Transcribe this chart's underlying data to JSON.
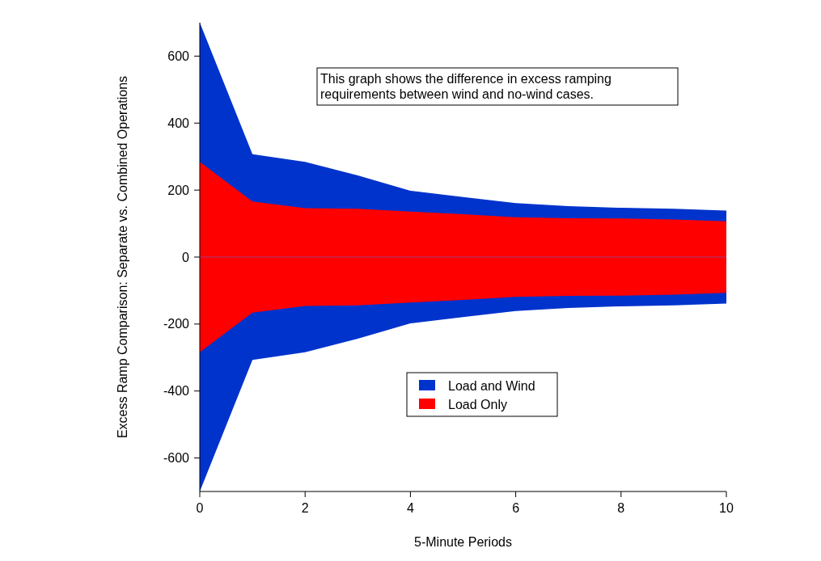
{
  "chart_data": {
    "type": "area",
    "xlabel": "5-Minute Periods",
    "ylabel": "Excess Ramp Comparison: Separate vs. Combined Operations",
    "x": [
      0,
      1,
      2,
      3,
      4,
      5,
      6,
      7,
      8,
      9,
      10
    ],
    "series": [
      {
        "name": "Load and Wind",
        "color": "#0033cc",
        "values": [
          700,
          307,
          284,
          244,
          198,
          179,
          161,
          152,
          147,
          144,
          139
        ]
      },
      {
        "color": "#0033cc",
        "values": [
          -700,
          -307,
          -284,
          -244,
          -198,
          -179,
          -161,
          -152,
          -147,
          -144,
          -139
        ]
      },
      {
        "name": "Load Only",
        "color": "#ff0000",
        "values": [
          284,
          166,
          146,
          144,
          136,
          128,
          119,
          116,
          115,
          112,
          107
        ]
      },
      {
        "color": "#ff0000",
        "values": [
          -284,
          -166,
          -146,
          -144,
          -136,
          -128,
          -119,
          -116,
          -115,
          -112,
          -107
        ]
      }
    ],
    "xlim": [
      0,
      10
    ],
    "xticks": [
      0,
      2,
      4,
      6,
      8,
      10
    ],
    "ylim": [
      -700,
      700
    ],
    "yticks": [
      -600,
      -400,
      -200,
      0,
      200,
      400,
      600
    ],
    "ref_lines": [
      {
        "axis": "y",
        "value": 0,
        "color": "#8a4aa0"
      }
    ],
    "annotations": [
      "This graph shows the difference in excess ramping requirements between wind and no-wind cases."
    ],
    "legend": "bottom",
    "grid": false
  }
}
